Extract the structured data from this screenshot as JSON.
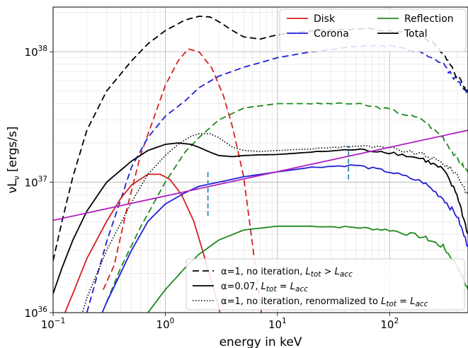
{
  "chart_data": {
    "type": "line",
    "title": "",
    "xlabel": "energy in keV",
    "ylabel": "νL",
    "ylabel_sub": "ν",
    "ylabel_unit": "[ergs/s]",
    "xscale": "log",
    "yscale": "log",
    "xlim": [
      0.1,
      500
    ],
    "ylim": [
      1e+36,
      2.2e+38
    ],
    "grid": "both",
    "x_ticks": [
      {
        "value": 0.1,
        "base": "10",
        "exp": "−1"
      },
      {
        "value": 1,
        "base": "10",
        "exp": "0"
      },
      {
        "value": 10,
        "base": "10",
        "exp": "1"
      },
      {
        "value": 100,
        "base": "10",
        "exp": "2"
      }
    ],
    "y_ticks": [
      {
        "value": 1e+36,
        "base": "10",
        "exp": "36"
      },
      {
        "value": 1e+37,
        "base": "10",
        "exp": "37"
      },
      {
        "value": 1e+38,
        "base": "10",
        "exp": "38"
      }
    ],
    "color_legend": {
      "position": "top-right",
      "entries": [
        {
          "label": "Disk",
          "color": "#d62020"
        },
        {
          "label": "Corona",
          "color": "#1f1fd6"
        },
        {
          "label": "Reflection",
          "color": "#1e8a1e"
        },
        {
          "label": "Total",
          "color": "#000000"
        }
      ]
    },
    "style_legend": {
      "position": "lower-right",
      "entries": [
        {
          "style": "dashed",
          "text": "α=1, no iteration, ",
          "math": "L",
          "sub1": "tot",
          "rel": " > ",
          "math2": "L",
          "sub2": "acc"
        },
        {
          "style": "solid",
          "text": "α=0.07, ",
          "math": "L",
          "sub1": "tot",
          "rel": " = ",
          "math2": "L",
          "sub2": "acc"
        },
        {
          "style": "dotted",
          "text": "α=1, no iteration, renormalized to ",
          "math": "L",
          "sub1": "tot",
          "rel": " = ",
          "math2": "L",
          "sub2": "acc"
        }
      ]
    },
    "series": [
      {
        "component": "Disk",
        "style": "dashed",
        "color": "#d62020",
        "x": [
          0.28,
          0.35,
          0.45,
          0.6,
          0.8,
          1.0,
          1.3,
          1.6,
          2.0,
          2.6,
          3.3,
          4.0,
          5.0,
          6.0,
          7.0,
          8.0
        ],
        "y": [
          1.5e+36,
          2.3e+36,
          6e+36,
          1.6e+37,
          3.2e+37,
          5.5e+37,
          8.5e+37,
          1.05e+38,
          1e+38,
          7.5e+37,
          4.6e+37,
          2.6e+37,
          1.1e+37,
          3.3e+36,
          1.2e+36,
          5e+35
        ]
      },
      {
        "component": "Corona",
        "style": "dashed",
        "color": "#1f1fd6",
        "x": [
          0.18,
          0.2,
          0.3,
          0.5,
          0.7,
          1.0,
          1.5,
          2.0,
          3.0,
          5.0,
          10,
          20,
          50,
          100,
          200,
          300,
          400,
          450,
          500
        ],
        "y": [
          6e+35,
          1e+36,
          3.5e+36,
          1.3e+37,
          2.2e+37,
          3.2e+37,
          4.2e+37,
          5.3e+37,
          6.5e+37,
          7.6e+37,
          9e+37,
          1e+38,
          1.1e+38,
          1.1e+38,
          1e+38,
          8e+37,
          6e+37,
          5.5e+37,
          4.8e+37
        ]
      },
      {
        "component": "Reflection",
        "style": "dashed",
        "color": "#1e8a1e",
        "x": [
          0.3,
          0.4,
          0.6,
          1.0,
          1.5,
          2.0,
          3.0,
          5.0,
          10,
          20,
          50,
          100,
          200,
          300,
          400,
          500
        ],
        "y": [
          1.2e+36,
          2.2e+36,
          4.5e+36,
          1e+37,
          1.7e+37,
          2.2e+37,
          3e+37,
          3.7e+37,
          4e+37,
          4e+37,
          4e+37,
          3.6e+37,
          3e+37,
          2.2e+37,
          1.5e+37,
          1.2e+37
        ]
      },
      {
        "component": "Total",
        "style": "dashed",
        "color": "#000000",
        "x": [
          0.1,
          0.12,
          0.15,
          0.2,
          0.3,
          0.5,
          0.7,
          1.0,
          1.5,
          2.0,
          2.5,
          3.0,
          4.0,
          5.0,
          7.0,
          10,
          20,
          50,
          100,
          200,
          300,
          400,
          500
        ],
        "y": [
          2.5e+36,
          5e+36,
          1.1e+37,
          2.5e+37,
          5e+37,
          8.5e+37,
          1.15e+38,
          1.45e+38,
          1.75e+38,
          1.87e+38,
          1.85e+38,
          1.7e+38,
          1.45e+38,
          1.3e+38,
          1.25e+38,
          1.35e+38,
          1.45e+38,
          1.5e+38,
          1.45e+38,
          1.3e+38,
          1e+38,
          6.5e+37,
          5e+37
        ]
      },
      {
        "component": "Disk",
        "style": "solid",
        "color": "#d62020",
        "x": [
          0.1,
          0.15,
          0.2,
          0.3,
          0.4,
          0.5,
          0.7,
          0.9,
          1.1,
          1.4,
          1.8,
          2.2,
          2.6,
          3.0,
          3.5
        ],
        "y": [
          6e+35,
          1.4e+36,
          2.6e+36,
          5e+36,
          7.5e+36,
          9.5e+36,
          1.15e+37,
          1.15e+37,
          1.05e+37,
          8e+36,
          5e+36,
          2.8e+36,
          1.7e+36,
          1.1e+36,
          6e+35
        ]
      },
      {
        "component": "Corona",
        "style": "solid",
        "color": "#1f1fd6",
        "x": [
          0.23,
          0.3,
          0.5,
          0.7,
          1.0,
          1.5,
          2.0,
          3.0,
          5.0,
          10,
          20,
          50,
          100,
          200,
          300,
          400,
          500
        ],
        "y": [
          7e+35,
          1.2e+36,
          3e+36,
          5e+36,
          6.8e+36,
          8.3e+36,
          9.3e+36,
          1e+37,
          1.1e+37,
          1.2e+37,
          1.3e+37,
          1.35e+37,
          1.2e+37,
          1e+37,
          7.5e+36,
          5.5e+36,
          3.2e+36
        ]
      },
      {
        "component": "Reflection",
        "style": "solid",
        "color": "#1e8a1e",
        "x": [
          0.5,
          0.7,
          1.0,
          1.5,
          2.0,
          3.0,
          5.0,
          10,
          20,
          50,
          100,
          200,
          300,
          400,
          500
        ],
        "y": [
          6e+35,
          1e+36,
          1.5e+36,
          2.2e+36,
          2.8e+36,
          3.6e+36,
          4.3e+36,
          4.6e+36,
          4.6e+36,
          4.5e+36,
          4.3e+36,
          3.8e+36,
          3.2e+36,
          2.3e+36,
          1.5e+36
        ]
      },
      {
        "component": "Total",
        "style": "solid",
        "color": "#000000",
        "x": [
          0.1,
          0.12,
          0.15,
          0.2,
          0.3,
          0.5,
          0.7,
          1.0,
          1.3,
          1.7,
          2.0,
          2.5,
          3.0,
          4.0,
          5.0,
          7.0,
          10,
          20,
          50,
          100,
          200,
          300,
          400,
          500
        ],
        "y": [
          1.4e+36,
          2.2e+36,
          3.6e+36,
          6e+36,
          1e+37,
          1.45e+37,
          1.75e+37,
          1.95e+37,
          2e+37,
          1.95e+37,
          1.85e+37,
          1.7e+37,
          1.6e+37,
          1.57e+37,
          1.6e+37,
          1.62e+37,
          1.63e+37,
          1.7e+37,
          1.78e+37,
          1.7e+37,
          1.5e+37,
          1.25e+37,
          8e+36,
          4e+36
        ]
      },
      {
        "component": "Total",
        "style": "dotted",
        "color": "#000000",
        "x": [
          0.17,
          0.2,
          0.3,
          0.5,
          0.7,
          1.0,
          1.3,
          1.7,
          2.0,
          2.5,
          3.0,
          3.5,
          4.0,
          5.0,
          7.0,
          10,
          20,
          50,
          100,
          200,
          300,
          400,
          500
        ],
        "y": [
          8e+35,
          1.3e+36,
          3e+36,
          7e+36,
          1.15e+37,
          1.6e+37,
          1.95e+37,
          2.25e+37,
          2.35e+37,
          2.35e+37,
          2.2e+37,
          2e+37,
          1.85e+37,
          1.75e+37,
          1.72e+37,
          1.75e+37,
          1.8e+37,
          1.9e+37,
          1.82e+37,
          1.62e+37,
          1.4e+37,
          1.15e+37,
          8e+36
        ]
      }
    ],
    "reference_line": {
      "color": "#b020c0",
      "x": [
        0.1,
        500
      ],
      "y": [
        5.1e+36,
        2.5e+37
      ]
    },
    "markers": [
      {
        "color": "#2a8ab0",
        "x": 2.4,
        "y_range": [
          5.5e+36,
          1.2e+37
        ]
      },
      {
        "color": "#2a8ab0",
        "x": 43,
        "y_range": [
          1.05e+37,
          1.9e+37
        ]
      }
    ]
  }
}
